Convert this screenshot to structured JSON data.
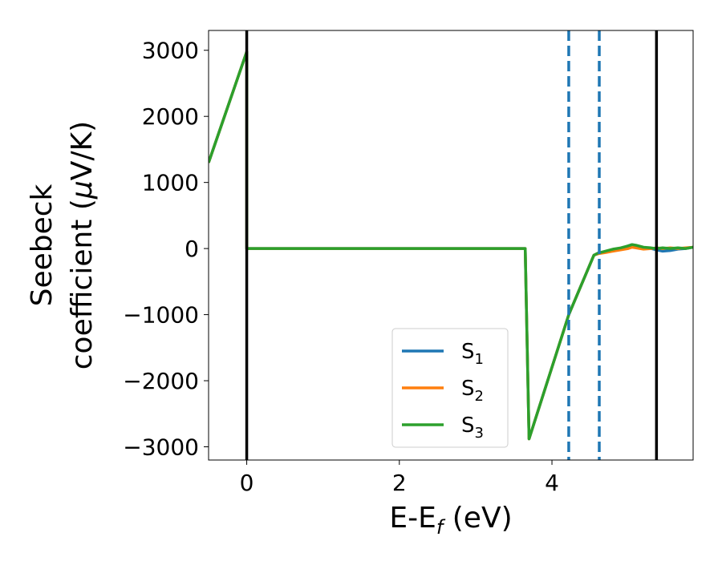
{
  "chart_data": {
    "type": "line",
    "xlabel": "E-E",
    "xlabel_sub": "f",
    "xlabel_unit": " (eV)",
    "ylabel_line1": "Seebeck",
    "ylabel_line2": "coefficient  (",
    "ylabel_mu": "μ",
    "ylabel_line2_end": "V/K)",
    "xlim": [
      -0.5,
      5.85
    ],
    "ylim": [
      -3200,
      3300
    ],
    "xticks": [
      0,
      2,
      4
    ],
    "yticks": [
      -3000,
      -2000,
      -1000,
      0,
      1000,
      2000,
      3000
    ],
    "xtick_labels": [
      "0",
      "2",
      "4"
    ],
    "ytick_labels": [
      "−3000",
      "−2000",
      "−1000",
      "0",
      "1000",
      "2000",
      "3000"
    ],
    "grid": false,
    "legend_position": "lower-center-right",
    "vlines_solid": [
      0.0,
      5.37
    ],
    "vlines_dashed": [
      4.22,
      4.62
    ],
    "series": [
      {
        "name": "S",
        "sub": "1",
        "color": "#1f77b4",
        "x": [
          -0.5,
          0.0,
          0.0,
          3.65,
          3.65,
          3.7,
          4.22,
          4.55,
          4.6,
          4.7,
          4.8,
          4.9,
          5.0,
          5.05,
          5.1,
          5.2,
          5.3,
          5.37,
          5.45,
          5.55,
          5.65,
          5.75,
          5.85
        ],
        "y": [
          1300,
          2980,
          0,
          0,
          0,
          -2880,
          -1000,
          -100,
          -80,
          -50,
          -20,
          0,
          40,
          60,
          40,
          10,
          0,
          -20,
          -40,
          -30,
          -10,
          0,
          20
        ]
      },
      {
        "name": "S",
        "sub": "2",
        "color": "#ff7f0e",
        "x": [
          -0.5,
          0.0,
          0.0,
          3.65,
          3.65,
          3.7,
          4.22,
          4.55,
          4.6,
          4.7,
          4.8,
          4.9,
          5.0,
          5.05,
          5.1,
          5.2,
          5.3,
          5.37,
          5.45,
          5.55,
          5.65,
          5.75,
          5.85
        ],
        "y": [
          1300,
          2980,
          0,
          0,
          0,
          -2880,
          -1000,
          -100,
          -80,
          -60,
          -40,
          -20,
          0,
          20,
          10,
          -10,
          0,
          10,
          0,
          10,
          0,
          10,
          20
        ]
      },
      {
        "name": "S",
        "sub": "3",
        "color": "#2ca02c",
        "x": [
          -0.5,
          0.0,
          0.0,
          3.65,
          3.65,
          3.7,
          4.22,
          4.55,
          4.6,
          4.7,
          4.8,
          4.9,
          5.0,
          5.05,
          5.1,
          5.2,
          5.3,
          5.37,
          5.45,
          5.55,
          5.65,
          5.75,
          5.85
        ],
        "y": [
          1300,
          2980,
          0,
          0,
          0,
          -2880,
          -1000,
          -100,
          -70,
          -40,
          -10,
          10,
          40,
          60,
          50,
          20,
          10,
          0,
          10,
          0,
          10,
          0,
          20
        ]
      }
    ]
  }
}
